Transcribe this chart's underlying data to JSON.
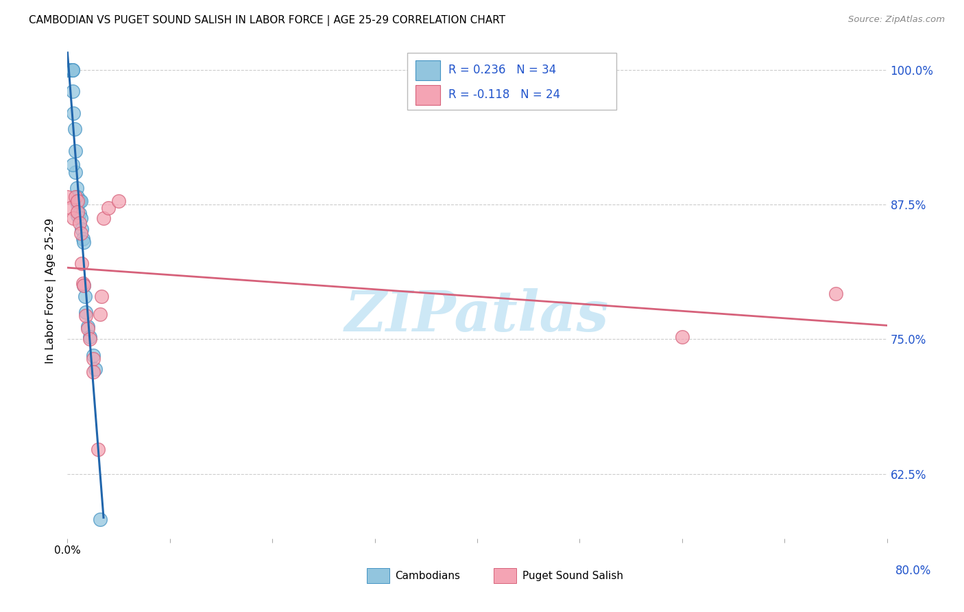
{
  "title": "CAMBODIAN VS PUGET SOUND SALISH IN LABOR FORCE | AGE 25-29 CORRELATION CHART",
  "source": "Source: ZipAtlas.com",
  "ylabel": "In Labor Force | Age 25-29",
  "xlim": [
    0.0,
    0.8
  ],
  "ylim": [
    0.565,
    1.025
  ],
  "yticks": [
    0.625,
    0.75,
    0.875,
    1.0
  ],
  "ytick_labels": [
    "62.5%",
    "75.0%",
    "87.5%",
    "100.0%"
  ],
  "xticks": [
    0.0,
    0.1,
    0.2,
    0.3,
    0.4,
    0.5,
    0.6,
    0.7,
    0.8
  ],
  "cambodian_color": "#92c5de",
  "cambodian_edge": "#4393c3",
  "salish_color": "#f4a4b4",
  "salish_edge": "#d6617a",
  "blue_line_color": "#2166ac",
  "pink_line_color": "#d6617a",
  "background_color": "#ffffff",
  "grid_color": "#cccccc",
  "blue_scatter_x": [
    0.0,
    0.0,
    0.0,
    0.0,
    0.004,
    0.005,
    0.005,
    0.005,
    0.006,
    0.007,
    0.008,
    0.008,
    0.009,
    0.009,
    0.01,
    0.01,
    0.01,
    0.011,
    0.012,
    0.012,
    0.013,
    0.013,
    0.014,
    0.015,
    0.016,
    0.016,
    0.017,
    0.018,
    0.02,
    0.022,
    0.025,
    0.027,
    0.032,
    0.005
  ],
  "blue_scatter_y": [
    1.0,
    1.0,
    1.0,
    1.0,
    1.0,
    1.0,
    1.0,
    0.98,
    0.96,
    0.945,
    0.925,
    0.905,
    0.89,
    0.878,
    0.882,
    0.875,
    0.865,
    0.878,
    0.878,
    0.867,
    0.878,
    0.862,
    0.852,
    0.843,
    0.84,
    0.8,
    0.79,
    0.775,
    0.762,
    0.752,
    0.735,
    0.722,
    0.583,
    0.912
  ],
  "pink_scatter_x": [
    0.0,
    0.003,
    0.006,
    0.008,
    0.01,
    0.01,
    0.012,
    0.013,
    0.014,
    0.015,
    0.016,
    0.018,
    0.02,
    0.022,
    0.025,
    0.025,
    0.03,
    0.032,
    0.033,
    0.035,
    0.04,
    0.05,
    0.6,
    0.75
  ],
  "pink_scatter_y": [
    0.882,
    0.872,
    0.862,
    0.882,
    0.878,
    0.868,
    0.858,
    0.848,
    0.82,
    0.802,
    0.8,
    0.772,
    0.76,
    0.75,
    0.732,
    0.72,
    0.648,
    0.773,
    0.79,
    0.862,
    0.872,
    0.878,
    0.752,
    0.792
  ],
  "legend_line1": "R = 0.236   N = 34",
  "legend_line2": "R = -0.118   N = 24",
  "label_cambodians": "Cambodians",
  "label_salish": "Puget Sound Salish",
  "watermark": "ZIPatlas"
}
